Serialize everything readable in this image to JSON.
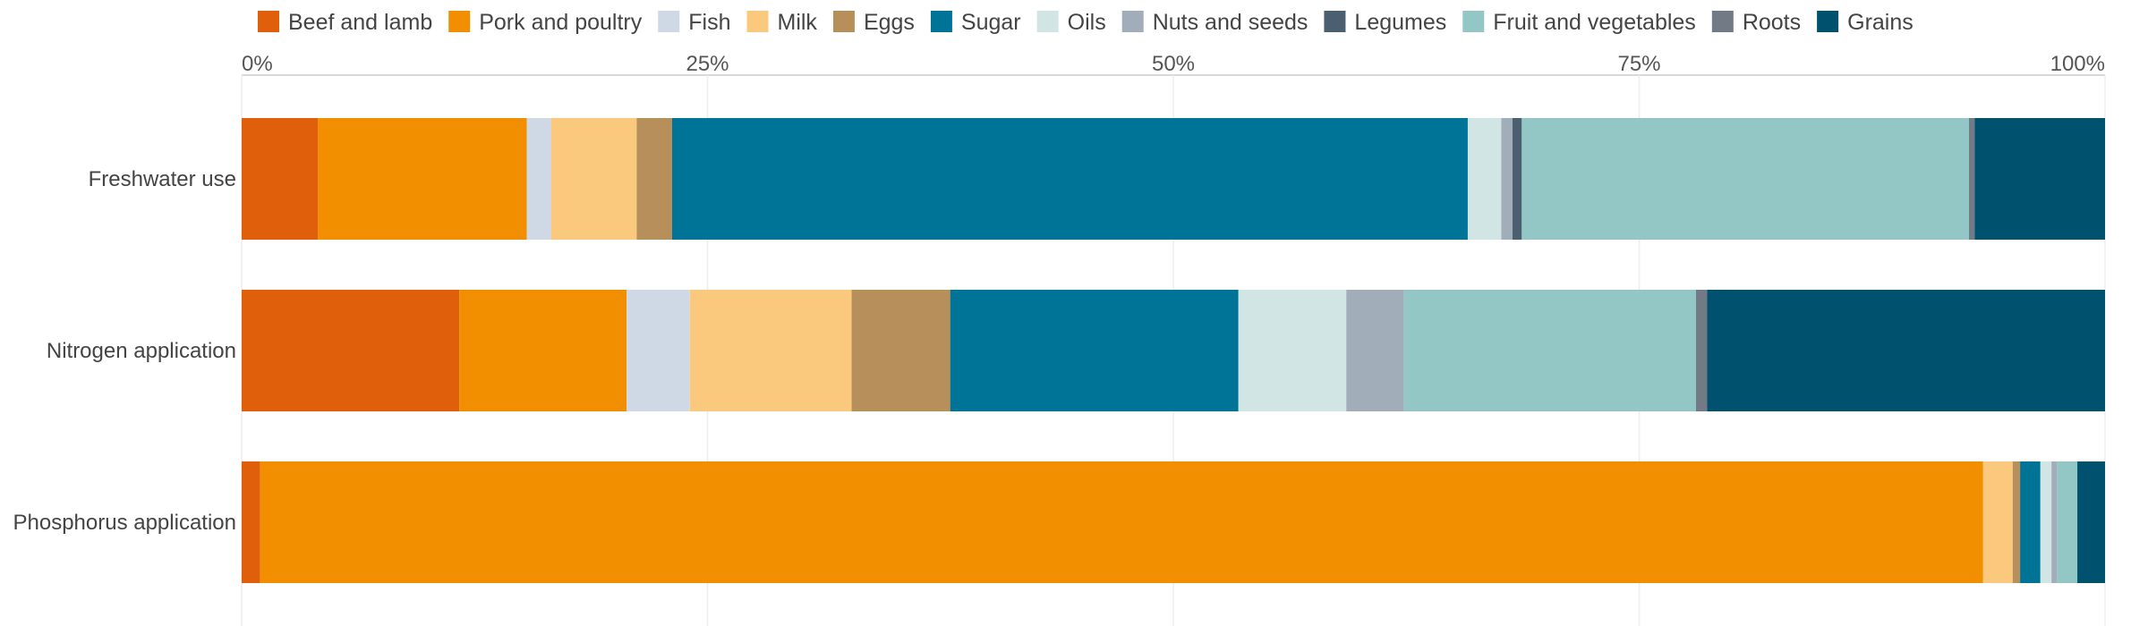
{
  "chart_data": {
    "type": "bar",
    "orientation": "horizontal",
    "stacked": true,
    "categories": [
      "Freshwater use",
      "Nitrogen application",
      "Phosphorus application"
    ],
    "x_ticks": [
      "0%",
      "25%",
      "50%",
      "75%",
      "100%"
    ],
    "xlim": [
      0,
      100
    ],
    "grid": true,
    "legend_position": "top",
    "series": [
      {
        "name": "Beef and lamb",
        "color": "#e05f0a",
        "values": [
          4.1,
          11.7,
          1.0
        ]
      },
      {
        "name": "Pork and poultry",
        "color": "#f28f00",
        "values": [
          11.2,
          9.0,
          93.3
        ]
      },
      {
        "name": "Fish",
        "color": "#cfd9e6",
        "values": [
          1.3,
          3.4,
          0.0
        ]
      },
      {
        "name": "Milk",
        "color": "#fac97e",
        "values": [
          4.6,
          8.7,
          1.6
        ]
      },
      {
        "name": "Eggs",
        "color": "#b68f5a",
        "values": [
          1.9,
          5.3,
          0.4
        ]
      },
      {
        "name": "Sugar",
        "color": "#007496",
        "values": [
          42.7,
          15.5,
          1.1
        ]
      },
      {
        "name": "Oils",
        "color": "#d1e6e4",
        "values": [
          1.8,
          5.8,
          0.6
        ]
      },
      {
        "name": "Nuts and seeds",
        "color": "#a2adba",
        "values": [
          0.6,
          3.1,
          0.3
        ]
      },
      {
        "name": "Legumes",
        "color": "#4c5f71",
        "values": [
          0.5,
          0.0,
          0.0
        ]
      },
      {
        "name": "Fruit and vegetables",
        "color": "#93c7c6",
        "values": [
          24.0,
          15.7,
          1.1
        ]
      },
      {
        "name": "Roots",
        "color": "#717a85",
        "values": [
          0.3,
          0.6,
          0.0
        ]
      },
      {
        "name": "Grains",
        "color": "#00516d",
        "values": [
          7.0,
          21.4,
          1.5
        ]
      }
    ]
  }
}
